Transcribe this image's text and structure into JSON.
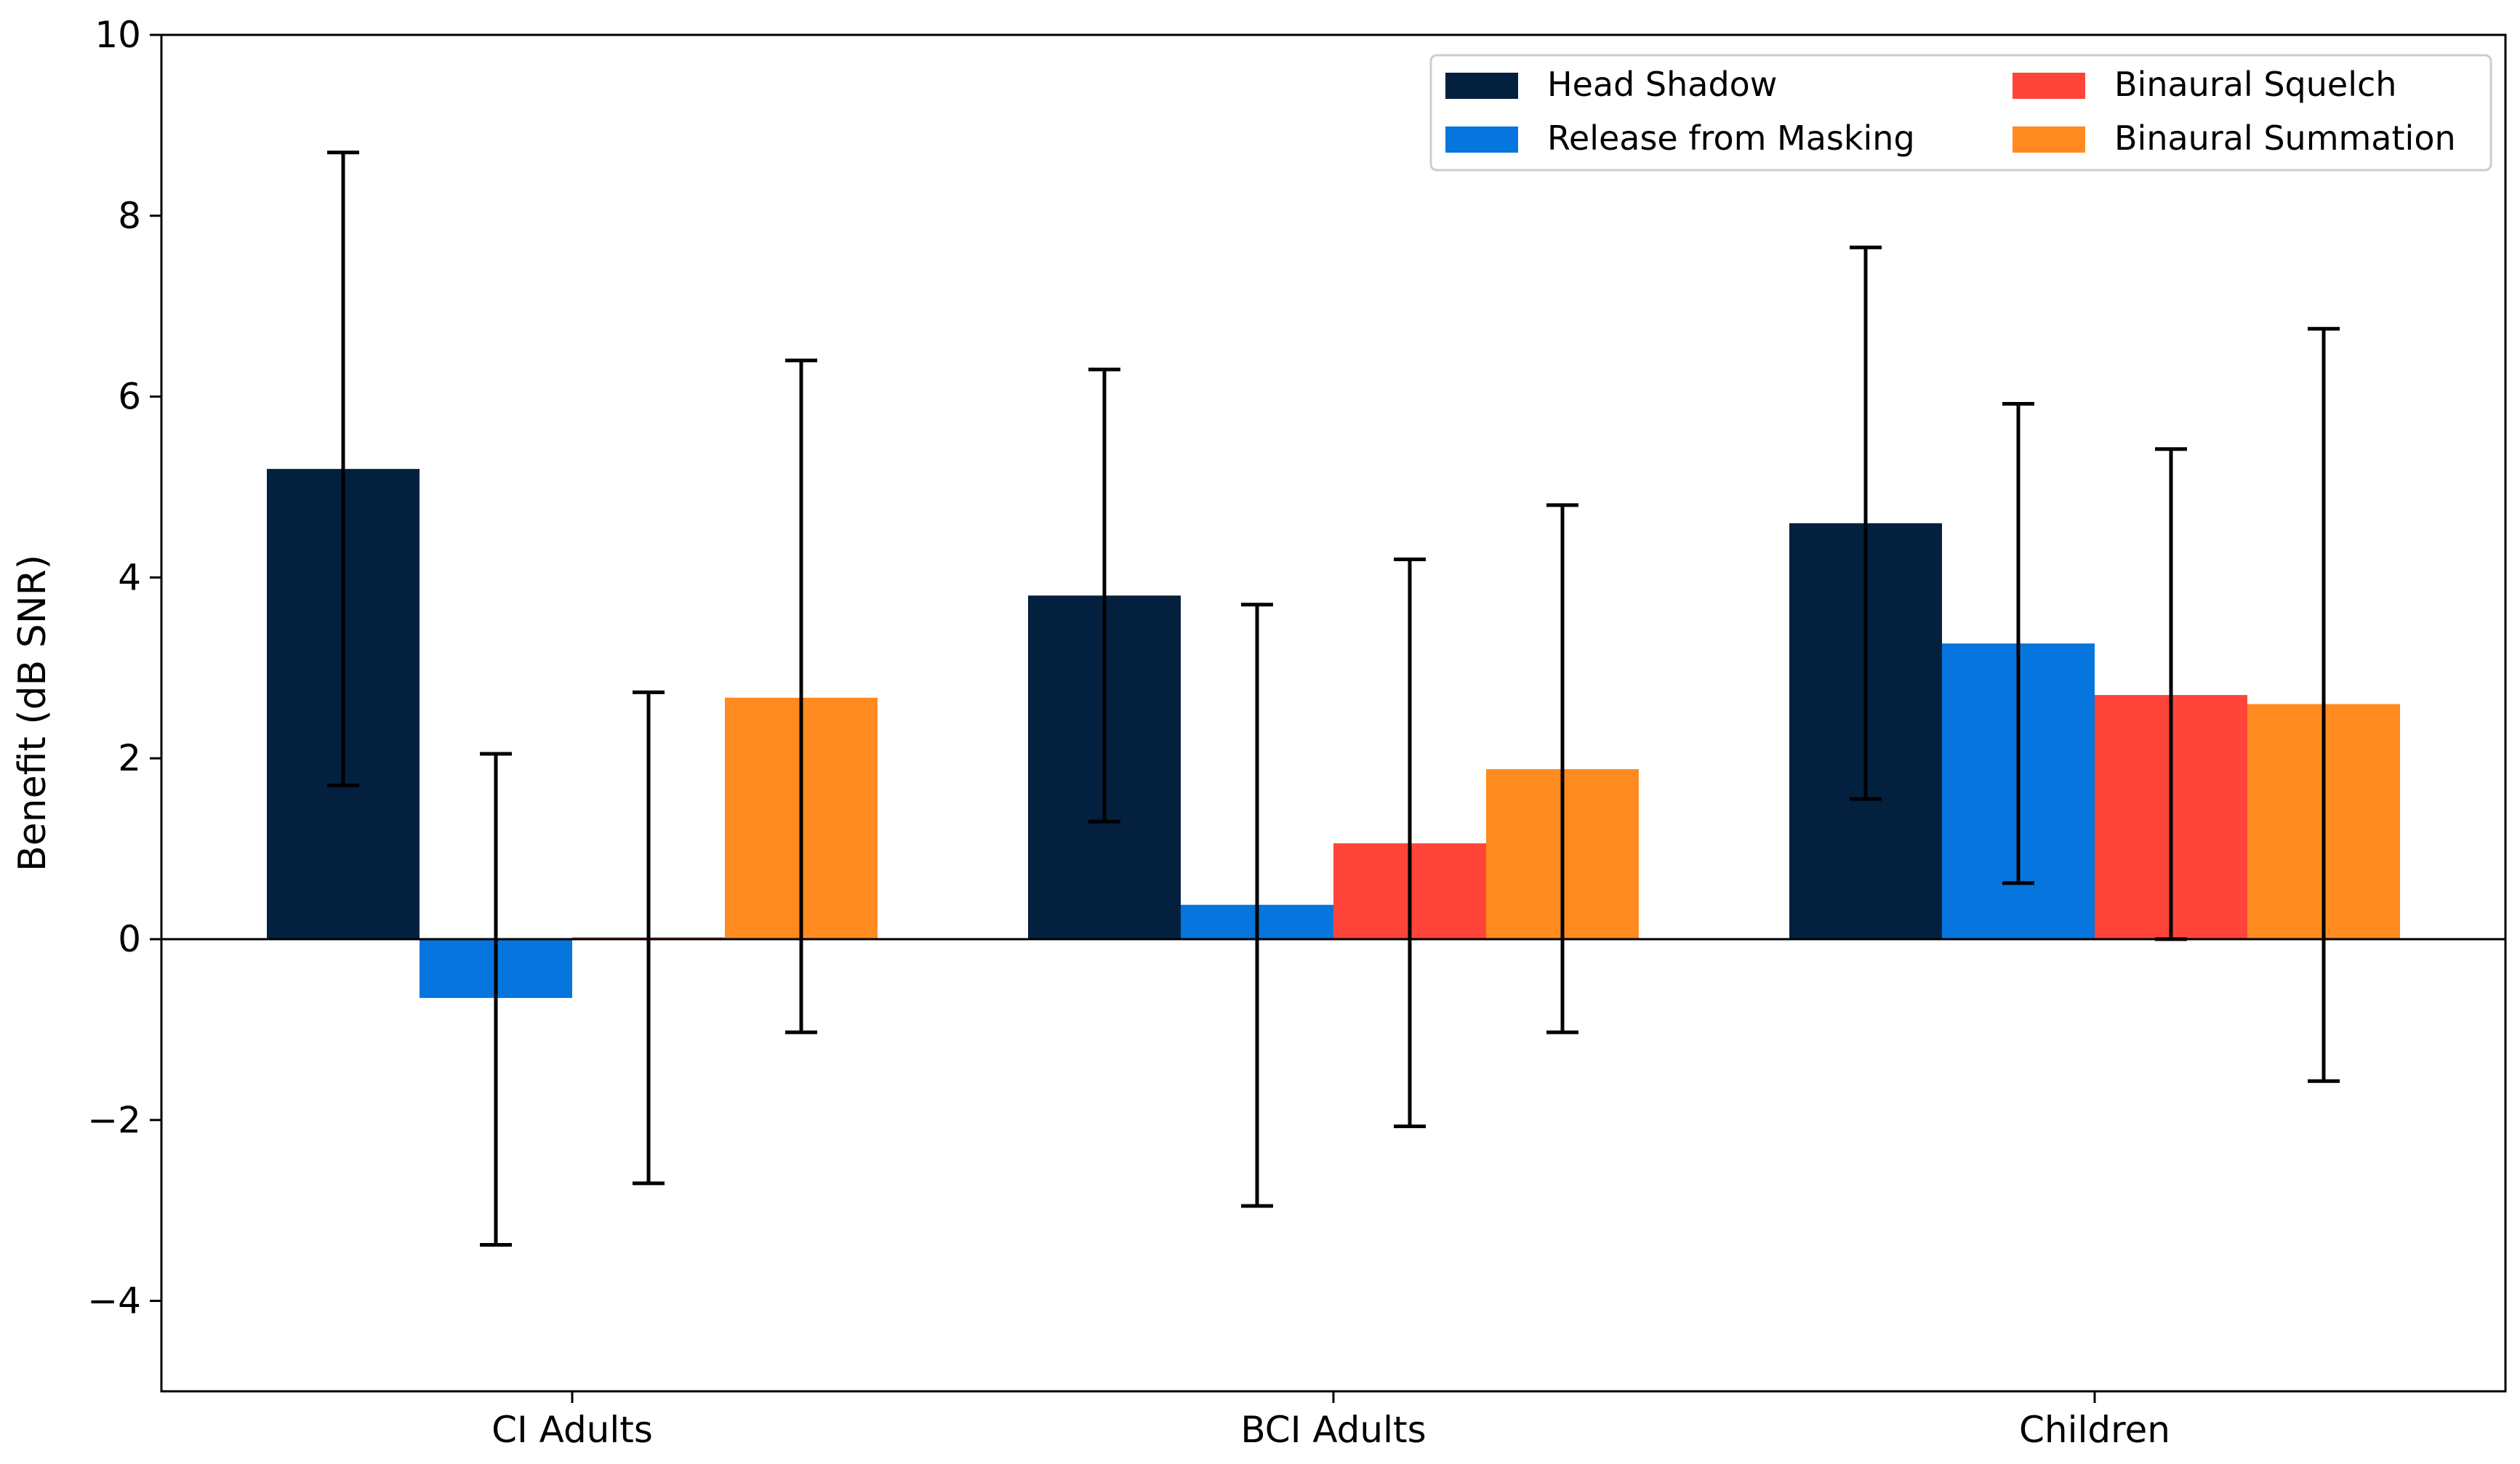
{
  "chart_data": {
    "type": "bar",
    "title": "",
    "xlabel": "",
    "ylabel": "Benefit (dB SNR)",
    "ylim": [
      -5,
      10
    ],
    "yticks": [
      -4,
      -2,
      0,
      2,
      4,
      6,
      8,
      10
    ],
    "ytick_labels": [
      "−4",
      "−2",
      "0",
      "2",
      "4",
      "6",
      "8",
      "10"
    ],
    "categories": [
      "CI Adults",
      "BCI Adults",
      "Children"
    ],
    "legend_position": "top-right",
    "series": [
      {
        "name": "Head Shadow",
        "color": "#03203F",
        "values": [
          5.2,
          3.8,
          4.6
        ],
        "err_low": [
          1.7,
          1.3,
          1.55
        ],
        "err_high": [
          8.7,
          6.3,
          7.65
        ]
      },
      {
        "name": "Release from Masking",
        "color": "#0675DD",
        "values": [
          -0.65,
          0.38,
          3.27
        ],
        "err_low": [
          -3.38,
          -2.95,
          0.62
        ],
        "err_high": [
          2.05,
          3.7,
          5.92
        ]
      },
      {
        "name": "Binaural Squelch",
        "color": "#FF453A",
        "values": [
          0.02,
          1.06,
          2.7
        ],
        "err_low": [
          -2.7,
          -2.07,
          0.0
        ],
        "err_high": [
          2.73,
          4.2,
          5.42
        ]
      },
      {
        "name": "Binaural Summation",
        "color": "#FF8A20",
        "values": [
          2.67,
          1.88,
          2.6
        ],
        "err_low": [
          -1.03,
          -1.03,
          -1.57
        ],
        "err_high": [
          6.4,
          4.8,
          6.75
        ]
      }
    ]
  }
}
